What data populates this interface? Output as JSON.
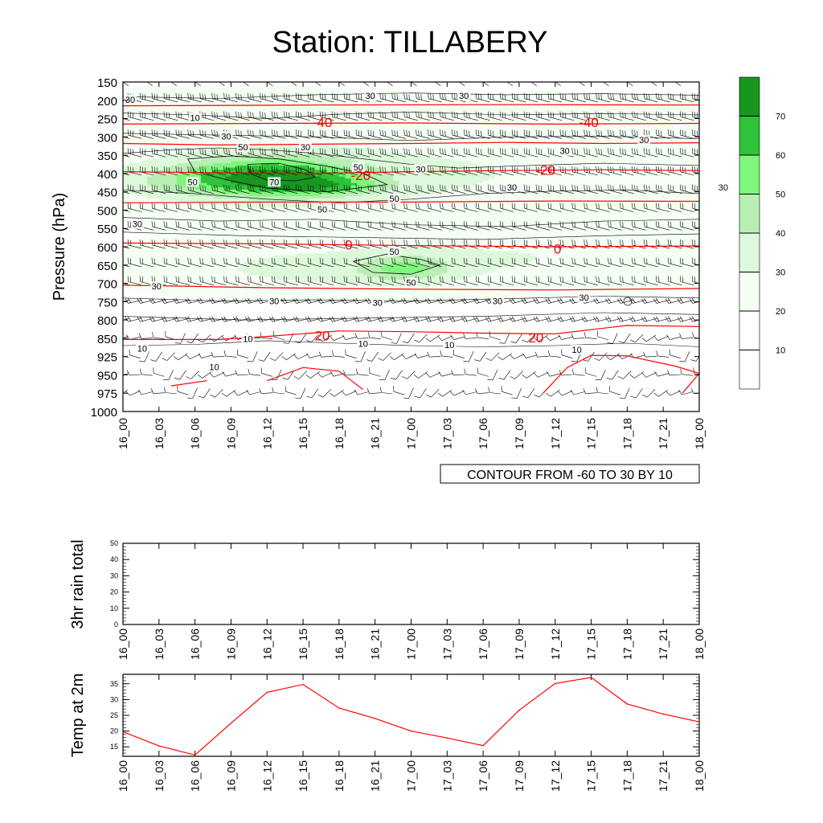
{
  "title": "Station: TILLABERY",
  "colors": {
    "levels": [
      "#ffffff",
      "#f5fff4",
      "#ddf8da",
      "#b9efb4",
      "#7ef77c",
      "#2fc23b",
      "#18961f"
    ],
    "temp_line": "#ff0000",
    "contour_line": "#000000"
  },
  "chart_data": [
    {
      "type": "heatmap",
      "name": "time-height cross section",
      "ylabel": "Pressure (hPa)",
      "x_ticks": [
        "16_00",
        "16_03",
        "16_06",
        "16_09",
        "16_12",
        "16_15",
        "16_18",
        "16_21",
        "17_00",
        "17_03",
        "17_06",
        "17_09",
        "17_12",
        "17_15",
        "17_18",
        "17_21",
        "18_00"
      ],
      "y_ticks": [
        150,
        200,
        250,
        300,
        350,
        400,
        450,
        500,
        550,
        600,
        650,
        700,
        750,
        800,
        850,
        925,
        950,
        975,
        1000
      ],
      "colorbar_labels": [
        "10",
        "20",
        "30",
        "40",
        "50",
        "60",
        "70"
      ],
      "info_label": "CONTOUR FROM -60 TO 30 BY 10",
      "wind_speed_labels": [
        {
          "text": "30",
          "x": 0.3,
          "p": 200
        },
        {
          "text": "10",
          "x": 3,
          "p": 250
        },
        {
          "text": "30",
          "x": 4.3,
          "p": 300
        },
        {
          "text": "50",
          "x": 5.0,
          "p": 330
        },
        {
          "text": "30",
          "x": 7.6,
          "p": 330
        },
        {
          "text": "30",
          "x": 10.3,
          "p": 190
        },
        {
          "text": "30",
          "x": 14.2,
          "p": 190
        },
        {
          "text": "50",
          "x": 2.9,
          "p": 425
        },
        {
          "text": "70",
          "x": 6.3,
          "p": 425
        },
        {
          "text": "50",
          "x": 9.8,
          "p": 385
        },
        {
          "text": "30",
          "x": 12.4,
          "p": 390
        },
        {
          "text": "50",
          "x": 11.3,
          "p": 470
        },
        {
          "text": "30",
          "x": 16.2,
          "p": 440
        },
        {
          "text": "30",
          "x": 18.4,
          "p": 340
        },
        {
          "text": "30",
          "x": 21.7,
          "p": 310
        },
        {
          "text": "30",
          "x": 25,
          "p": 440
        },
        {
          "text": "30",
          "x": 0.6,
          "p": 540
        },
        {
          "text": "50",
          "x": 8.3,
          "p": 500
        },
        {
          "text": "50",
          "x": 11.3,
          "p": 615
        },
        {
          "text": "50",
          "x": 12,
          "p": 700
        },
        {
          "text": "30",
          "x": 1.4,
          "p": 710
        },
        {
          "text": "30",
          "x": 6.3,
          "p": 750
        },
        {
          "text": "30",
          "x": 10.6,
          "p": 755
        },
        {
          "text": "30",
          "x": 15.6,
          "p": 750
        },
        {
          "text": "30",
          "x": 19.2,
          "p": 740
        },
        {
          "text": "10",
          "x": 5.2,
          "p": 855
        },
        {
          "text": "10",
          "x": 10.0,
          "p": 875
        },
        {
          "text": "10",
          "x": 13.6,
          "p": 880
        },
        {
          "text": "10",
          "x": 0.8,
          "p": 895
        },
        {
          "text": "10",
          "x": 3.8,
          "p": 940
        },
        {
          "text": "10",
          "x": 18.9,
          "p": 900
        }
      ],
      "temperature_labels": [
        {
          "text": "-40",
          "x": 8.3,
          "p": 260
        },
        {
          "text": "-40",
          "x": 19.4,
          "p": 260
        },
        {
          "text": "-20",
          "x": 9.9,
          "p": 405
        },
        {
          "text": "-20",
          "x": 17.6,
          "p": 390
        },
        {
          "text": "0",
          "x": 9.4,
          "p": 595
        },
        {
          "text": "0",
          "x": 18.1,
          "p": 605
        },
        {
          "text": "20",
          "x": 8.3,
          "p": 843
        },
        {
          "text": "20",
          "x": 17.2,
          "p": 848
        }
      ],
      "temperature_isotherms": [
        {
          "value": -50,
          "points": [
            [
              0,
              215
            ],
            [
              8,
              213
            ],
            [
              16,
              212
            ],
            [
              24,
              213
            ]
          ]
        },
        {
          "value": -40,
          "points": [
            [
              0,
              265
            ],
            [
              6,
              263
            ],
            [
              12,
              262
            ],
            [
              18,
              265
            ],
            [
              24,
              263
            ]
          ]
        },
        {
          "value": -30,
          "points": [
            [
              0,
              318
            ],
            [
              4,
              322
            ],
            [
              8,
              320
            ],
            [
              12,
              318
            ],
            [
              16,
              315
            ],
            [
              20,
              318
            ],
            [
              24,
              316
            ]
          ]
        },
        {
          "value": -20,
          "points": [
            [
              0,
              395
            ],
            [
              4,
              398
            ],
            [
              8,
              400
            ],
            [
              12,
              395
            ],
            [
              16,
              392
            ],
            [
              20,
              390
            ],
            [
              24,
              392
            ]
          ]
        },
        {
          "value": -10,
          "points": [
            [
              0,
              480
            ],
            [
              6,
              478
            ],
            [
              12,
              478
            ],
            [
              18,
              475
            ],
            [
              24,
              476
            ]
          ]
        },
        {
          "value": 0,
          "points": [
            [
              0,
              590
            ],
            [
              6,
              592
            ],
            [
              12,
              597
            ],
            [
              18,
              600
            ],
            [
              24,
              598
            ]
          ]
        },
        {
          "value": 10,
          "points": [
            [
              0,
              705
            ],
            [
              6,
              712
            ],
            [
              12,
              716
            ],
            [
              18,
              718
            ],
            [
              24,
              714
            ]
          ]
        },
        {
          "value": 20,
          "points": [
            [
              0,
              855
            ],
            [
              4,
              855
            ],
            [
              6,
              845
            ],
            [
              9,
              830
            ],
            [
              12,
              832
            ],
            [
              15,
              836
            ],
            [
              18,
              838
            ],
            [
              21,
              815
            ],
            [
              24,
              818
            ]
          ]
        }
      ],
      "temperature_isotherms_partial": [
        {
          "value": 30,
          "points": [
            [
              2,
              965
            ],
            [
              3.5,
              958
            ]
          ]
        },
        {
          "value": 30,
          "points": [
            [
              6,
              958
            ],
            [
              7.5,
              940
            ],
            [
              9,
              945
            ],
            [
              10,
              970
            ]
          ]
        },
        {
          "value": 30,
          "points": [
            [
              17.5,
              975
            ],
            [
              18.5,
              940
            ],
            [
              19.5,
              920
            ],
            [
              21,
              922
            ],
            [
              23,
              938
            ],
            [
              24,
              948
            ],
            [
              23.3,
              975
            ]
          ]
        }
      ]
    },
    {
      "type": "line",
      "name": "3hr rain",
      "ylabel": "3hr rain total",
      "ylim": [
        0,
        50
      ],
      "y_ticks": [
        0,
        10,
        20,
        30,
        40,
        50
      ],
      "x_ticks": [
        "16_00",
        "16_03",
        "16_06",
        "16_09",
        "16_12",
        "16_15",
        "16_18",
        "16_21",
        "17_00",
        "17_03",
        "17_06",
        "17_09",
        "17_12",
        "17_15",
        "17_18",
        "17_21",
        "18_00"
      ],
      "values": []
    },
    {
      "type": "line",
      "name": "2m temperature",
      "ylabel": "Temp at 2m",
      "ylim": [
        12,
        38
      ],
      "y_ticks": [
        15,
        20,
        25,
        30,
        35
      ],
      "x_ticks": [
        "16_00",
        "16_03",
        "16_06",
        "16_09",
        "16_12",
        "16_15",
        "16_18",
        "16_21",
        "17_00",
        "17_03",
        "17_06",
        "17_09",
        "17_12",
        "17_15",
        "17_18",
        "17_21",
        "18_00"
      ],
      "values": [
        19.8,
        15.3,
        12.4,
        22.5,
        32.3,
        34.8,
        27.3,
        24.0,
        20.0,
        17.8,
        15.4,
        26.6,
        35.1,
        37.0,
        28.6,
        25.4,
        22.9
      ]
    }
  ]
}
